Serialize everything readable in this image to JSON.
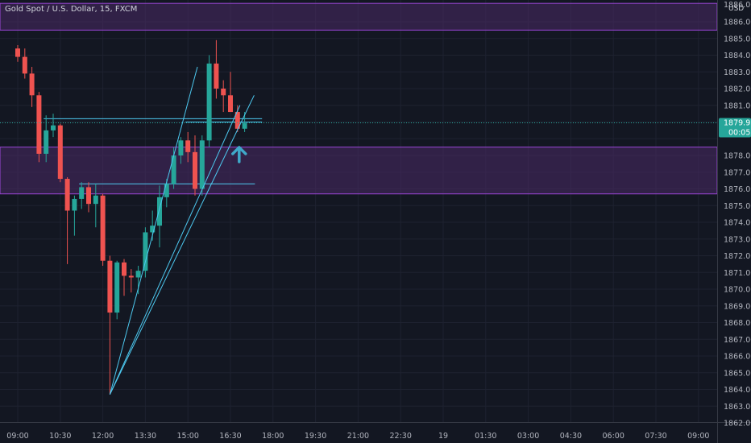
{
  "chart_data": {
    "type": "candlestick",
    "title": "Gold Spot / U.S. Dollar, 15, FXCM",
    "currency": "USD",
    "ylim": [
      1861.6,
      1887.1
    ],
    "y_ticks": [
      1886,
      1885,
      1884,
      1883,
      1882,
      1881,
      1880,
      1879,
      1878,
      1877,
      1876,
      1875,
      1874,
      1873,
      1872,
      1871,
      1870,
      1869,
      1868,
      1867,
      1866,
      1865,
      1864,
      1863,
      1862
    ],
    "y_tick_labels": [
      "1886.00",
      "1885.00",
      "1884.00",
      "1883.00",
      "1882.00",
      "1881.00",
      "1880.00",
      "1879.00",
      "1878.00",
      "1877.00",
      "1876.00",
      "1875.00",
      "1874.00",
      "1873.00",
      "1872.00",
      "1871.00",
      "1870.00",
      "1869.00",
      "1868.00",
      "1867.00",
      "1866.00",
      "1865.00",
      "1864.00",
      "1863.00",
      "1862.00"
    ],
    "x_ticks": [
      "09:00",
      "10:30",
      "12:00",
      "13:30",
      "15:00",
      "16:30",
      "18:00",
      "19:30",
      "21:00",
      "22:30",
      "19",
      "01:30",
      "03:00",
      "04:30",
      "06:00",
      "07:30",
      "09:00"
    ],
    "x_tick_step_hours": 1.5,
    "candles": [
      {
        "t": "09:00",
        "o": 1884.4,
        "h": 1884.6,
        "l": 1883.6,
        "c": 1883.9
      },
      {
        "t": "09:15",
        "o": 1883.9,
        "h": 1884.4,
        "l": 1882.6,
        "c": 1882.9
      },
      {
        "t": "09:30",
        "o": 1882.9,
        "h": 1883.3,
        "l": 1880.9,
        "c": 1881.6
      },
      {
        "t": "09:45",
        "o": 1881.6,
        "h": 1881.8,
        "l": 1877.6,
        "c": 1878.1
      },
      {
        "t": "10:00",
        "o": 1878.1,
        "h": 1880.4,
        "l": 1877.6,
        "c": 1879.5
      },
      {
        "t": "10:15",
        "o": 1879.5,
        "h": 1880.5,
        "l": 1879.1,
        "c": 1879.8
      },
      {
        "t": "10:30",
        "o": 1879.8,
        "h": 1879.9,
        "l": 1876.4,
        "c": 1876.6
      },
      {
        "t": "10:45",
        "o": 1876.6,
        "h": 1876.7,
        "l": 1871.5,
        "c": 1874.7
      },
      {
        "t": "11:00",
        "o": 1874.7,
        "h": 1875.6,
        "l": 1873.2,
        "c": 1875.4
      },
      {
        "t": "11:15",
        "o": 1875.4,
        "h": 1876.4,
        "l": 1874.8,
        "c": 1876.1
      },
      {
        "t": "11:30",
        "o": 1876.1,
        "h": 1876.4,
        "l": 1874.6,
        "c": 1875.1
      },
      {
        "t": "11:45",
        "o": 1875.1,
        "h": 1876.3,
        "l": 1873.7,
        "c": 1875.6
      },
      {
        "t": "12:00",
        "o": 1875.6,
        "h": 1875.7,
        "l": 1871.4,
        "c": 1871.7
      },
      {
        "t": "12:15",
        "o": 1871.7,
        "h": 1872.0,
        "l": 1863.7,
        "c": 1868.6
      },
      {
        "t": "12:30",
        "o": 1868.6,
        "h": 1871.7,
        "l": 1868.2,
        "c": 1871.6
      },
      {
        "t": "12:45",
        "o": 1871.6,
        "h": 1871.8,
        "l": 1869.6,
        "c": 1870.8
      },
      {
        "t": "13:00",
        "o": 1870.8,
        "h": 1871.2,
        "l": 1869.8,
        "c": 1870.7
      },
      {
        "t": "13:15",
        "o": 1870.7,
        "h": 1871.4,
        "l": 1869.7,
        "c": 1871.1
      },
      {
        "t": "13:30",
        "o": 1871.1,
        "h": 1873.7,
        "l": 1870.7,
        "c": 1873.4
      },
      {
        "t": "13:45",
        "o": 1873.4,
        "h": 1874.7,
        "l": 1872.9,
        "c": 1873.8
      },
      {
        "t": "14:00",
        "o": 1873.8,
        "h": 1876.2,
        "l": 1872.5,
        "c": 1875.5
      },
      {
        "t": "14:15",
        "o": 1875.5,
        "h": 1876.6,
        "l": 1874.9,
        "c": 1876.3
      },
      {
        "t": "14:30",
        "o": 1876.3,
        "h": 1878.5,
        "l": 1876.0,
        "c": 1878.0
      },
      {
        "t": "14:45",
        "o": 1878.0,
        "h": 1879.1,
        "l": 1877.5,
        "c": 1878.9
      },
      {
        "t": "15:00",
        "o": 1878.9,
        "h": 1879.4,
        "l": 1877.6,
        "c": 1878.2
      },
      {
        "t": "15:15",
        "o": 1878.2,
        "h": 1879.2,
        "l": 1875.6,
        "c": 1876.0
      },
      {
        "t": "15:30",
        "o": 1876.0,
        "h": 1879.2,
        "l": 1875.6,
        "c": 1878.9
      },
      {
        "t": "15:45",
        "o": 1878.9,
        "h": 1884.0,
        "l": 1878.5,
        "c": 1883.5
      },
      {
        "t": "16:00",
        "o": 1883.5,
        "h": 1884.9,
        "l": 1881.4,
        "c": 1882.0
      },
      {
        "t": "16:15",
        "o": 1882.0,
        "h": 1882.5,
        "l": 1880.6,
        "c": 1881.6
      },
      {
        "t": "16:30",
        "o": 1881.6,
        "h": 1883.0,
        "l": 1880.6,
        "c": 1880.6
      },
      {
        "t": "16:45",
        "o": 1880.6,
        "h": 1881.0,
        "l": 1879.4,
        "c": 1879.6
      },
      {
        "t": "17:00",
        "o": 1879.6,
        "h": 1880.6,
        "l": 1879.4,
        "c": 1879.95
      }
    ],
    "zones": [
      {
        "from": 1885.5,
        "to": 1887.1
      },
      {
        "from": 1875.7,
        "to": 1878.5
      }
    ],
    "hlines": [
      {
        "t1": "10:00",
        "t2": "17:30",
        "price": 1880.2
      },
      {
        "t1": "15:00",
        "t2": "17:30",
        "price": 1880.0
      },
      {
        "t1": "11:15",
        "t2": "17:15",
        "price": 1876.3
      }
    ],
    "trendlines": [
      {
        "t1": "12:15",
        "p1": 1863.7,
        "t2": "15:15",
        "p2": 1883.3
      },
      {
        "t1": "12:15",
        "p1": 1863.7,
        "t2": "17:15",
        "p2": 1881.6
      },
      {
        "t1": "12:15",
        "p1": 1863.7,
        "t2": "16:45",
        "p2": 1881.0
      }
    ],
    "arrow": {
      "t": "16:45",
      "price": 1878.1,
      "direction": "up"
    },
    "last_price": {
      "value": "1879.95",
      "countdown": "00:05"
    },
    "top_label": "1886.00",
    "colors": {
      "up": "#26a69a",
      "down": "#ef5350",
      "zone_fill": "#4a2a66",
      "zone_border": "#9c46d8",
      "line": "#4dc9f0",
      "arrow": "#3fa9c9",
      "badge": "#26a69a",
      "background": "#131722",
      "grid": "#1e2230"
    }
  }
}
